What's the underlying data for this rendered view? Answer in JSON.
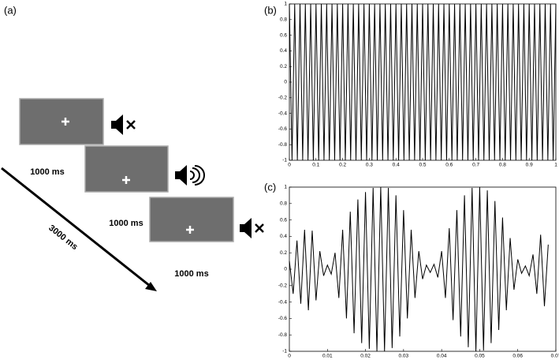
{
  "diagram": {
    "label": "(a)",
    "screens": [
      {
        "duration": "1000 ms"
      },
      {
        "duration": "1000 ms"
      },
      {
        "duration": "1000 ms"
      }
    ],
    "total": "3000 ms"
  },
  "chart_data": [
    {
      "type": "line",
      "title": "(b)",
      "xlim": [
        0,
        1
      ],
      "xticks": [
        0,
        0.1,
        0.2,
        0.3,
        0.4,
        0.5,
        0.6,
        0.7,
        0.8,
        0.9,
        1
      ],
      "ylim": [
        -1,
        1
      ],
      "yticks": [
        -1,
        -0.8,
        -0.6,
        -0.4,
        -0.2,
        0,
        0.2,
        0.4,
        0.6,
        0.8,
        1
      ],
      "color": "#000000",
      "x": [
        0,
        0.01,
        0.02,
        0.03,
        0.04,
        0.05,
        0.06,
        0.07,
        0.08,
        0.09,
        0.1,
        0.11,
        0.12,
        0.13,
        0.14,
        0.15,
        0.16,
        0.17,
        0.18,
        0.19,
        0.2,
        0.21,
        0.22,
        0.23,
        0.24,
        0.25,
        0.26,
        0.27,
        0.28,
        0.29,
        0.3,
        0.31,
        0.32,
        0.33,
        0.34,
        0.35,
        0.36,
        0.37,
        0.38,
        0.39,
        0.4,
        0.41,
        0.42,
        0.43,
        0.44,
        0.45,
        0.46,
        0.47,
        0.48,
        0.49,
        0.5,
        0.51,
        0.52,
        0.53,
        0.54,
        0.55,
        0.56,
        0.57,
        0.58,
        0.59,
        0.6,
        0.61,
        0.62,
        0.63,
        0.64,
        0.65,
        0.66,
        0.67,
        0.68,
        0.69,
        0.7,
        0.71,
        0.72,
        0.73,
        0.74,
        0.75,
        0.76,
        0.77,
        0.78,
        0.79,
        0.8,
        0.81,
        0.82,
        0.83,
        0.84,
        0.85,
        0.86,
        0.87,
        0.88,
        0.89,
        0.9,
        0.91,
        0.92,
        0.93,
        0.94,
        0.95,
        0.96,
        0.97,
        0.98,
        0.99,
        1
      ],
      "values": [
        1,
        -1,
        1,
        -1,
        1,
        -1,
        1,
        -1,
        1,
        -1,
        1,
        -1,
        1,
        -1,
        1,
        -1,
        1,
        -1,
        1,
        -1,
        1,
        -1,
        1,
        -1,
        1,
        -1,
        1,
        -1,
        1,
        -1,
        1,
        -1,
        1,
        -1,
        1,
        -1,
        1,
        -1,
        1,
        -1,
        1,
        -1,
        1,
        -1,
        1,
        -1,
        1,
        -1,
        1,
        -1,
        1,
        -1,
        1,
        -1,
        1,
        -1,
        1,
        -1,
        1,
        -1,
        1,
        -1,
        1,
        -1,
        1,
        -1,
        1,
        -1,
        1,
        -1,
        1,
        -1,
        1,
        -1,
        1,
        -1,
        1,
        -1,
        1,
        -1,
        1,
        -1,
        1,
        -1,
        1,
        -1,
        1,
        -1,
        1,
        -1,
        1,
        -1,
        1,
        -1,
        1,
        -1,
        1,
        -1,
        1,
        -1,
        1
      ]
    },
    {
      "type": "line",
      "title": "(c)",
      "xlim": [
        0,
        0.07
      ],
      "xticks": [
        0,
        0.01,
        0.02,
        0.03,
        0.04,
        0.05,
        0.06,
        0.07
      ],
      "ylim": [
        -1,
        1
      ],
      "yticks": [
        -1,
        -0.8,
        -0.6,
        -0.4,
        -0.2,
        0,
        0.2,
        0.4,
        0.6,
        0.8,
        1
      ],
      "color": "#000000",
      "x": [
        0,
        0.001,
        0.002,
        0.003,
        0.004,
        0.005,
        0.006,
        0.007,
        0.008,
        0.009,
        0.01,
        0.011,
        0.012,
        0.013,
        0.014,
        0.015,
        0.016,
        0.017,
        0.018,
        0.019,
        0.02,
        0.021,
        0.022,
        0.023,
        0.024,
        0.025,
        0.026,
        0.027,
        0.028,
        0.029,
        0.03,
        0.031,
        0.032,
        0.033,
        0.034,
        0.035,
        0.036,
        0.037,
        0.038,
        0.039,
        0.04,
        0.041,
        0.042,
        0.043,
        0.044,
        0.045,
        0.046,
        0.047,
        0.048,
        0.049,
        0.05,
        0.051,
        0.052,
        0.053,
        0.054,
        0.055,
        0.056,
        0.057,
        0.058,
        0.059,
        0.06,
        0.061,
        0.062,
        0.063,
        0.064,
        0.065,
        0.066,
        0.067,
        0.068
      ],
      "values": [
        0.1,
        -0.3,
        0.35,
        -0.42,
        0.48,
        -0.5,
        0.47,
        -0.38,
        0.22,
        -0.08,
        0.05,
        -0.06,
        0.2,
        -0.35,
        0.48,
        -0.6,
        0.7,
        -0.78,
        0.85,
        -0.9,
        0.94,
        -0.97,
        0.99,
        -1,
        1,
        -1,
        0.99,
        -0.96,
        0.9,
        -0.82,
        0.72,
        -0.6,
        0.48,
        -0.35,
        0.22,
        -0.12,
        0.05,
        -0.04,
        0.06,
        -0.1,
        0.22,
        -0.35,
        0.5,
        -0.62,
        0.72,
        -0.82,
        0.9,
        -0.95,
        0.99,
        -1,
        1,
        -0.99,
        0.96,
        -0.9,
        0.83,
        -0.74,
        0.63,
        -0.5,
        0.38,
        -0.25,
        0.12,
        -0.05,
        0.04,
        -0.08,
        0.18,
        -0.3,
        0.42,
        -0.45,
        0.3
      ]
    }
  ]
}
